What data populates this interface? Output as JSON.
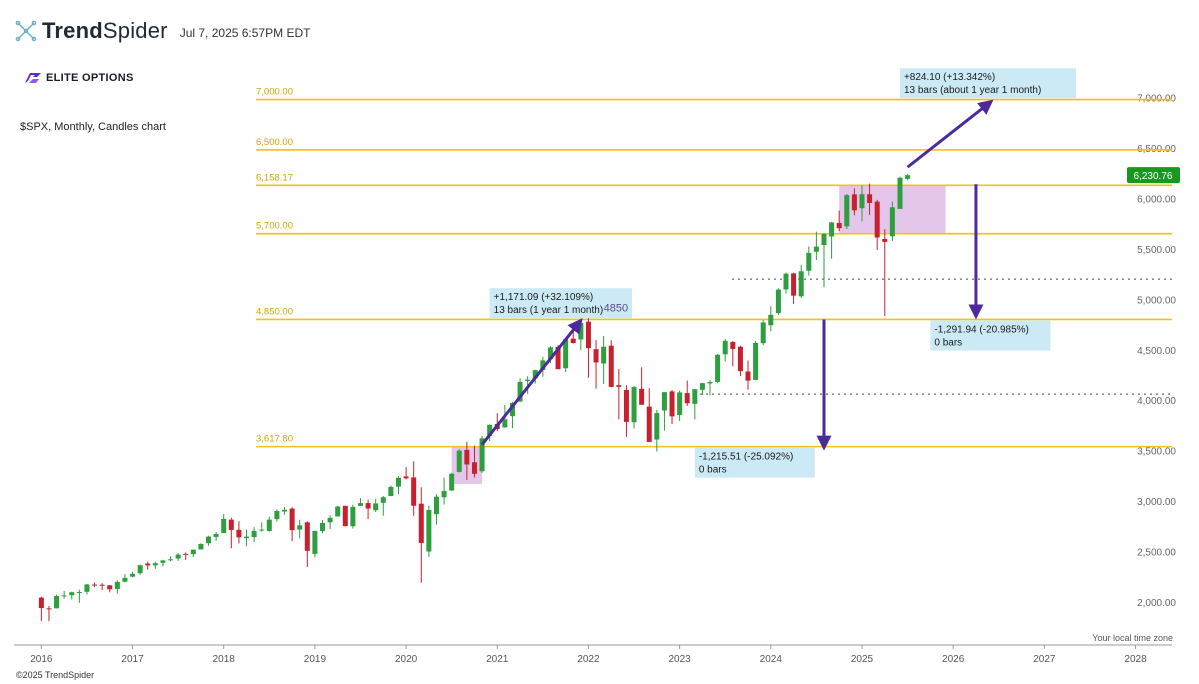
{
  "header": {
    "brand_light": "Trend",
    "brand_heavy": "Spider",
    "timestamp": "Jul 7, 2025 6:57PM EDT"
  },
  "watermark": {
    "label": "ELITE OPTIONS",
    "color": "#5b2bd1"
  },
  "symbol_label": "$SPX, Monthly, Candles chart",
  "timezone_label": "Your local time zone",
  "copyright": "©2025 TrendSpider",
  "colors": {
    "up": "#2e9e3f",
    "down": "#c8202e",
    "level": "#f2c118",
    "arrow": "#4b2a9c",
    "zone": "#d9b3e3",
    "box": "#c9e9f5",
    "price_tag": "#18981e"
  },
  "chart_data": {
    "type": "candlestick",
    "ylim": [
      1700,
      7300
    ],
    "y_ticks": [
      "2,000.00",
      "2,500.00",
      "3,000.00",
      "3,500.00",
      "4,000.00",
      "4,500.00",
      "5,000.00",
      "5,500.00",
      "6,000.00",
      "6,500.00",
      "7,000.00"
    ],
    "y_tick_values": [
      2000,
      2500,
      3000,
      3500,
      4000,
      4500,
      5000,
      5500,
      6000,
      6500,
      7000
    ],
    "x_labels": [
      "2016",
      "2017",
      "2018",
      "2019",
      "2020",
      "2021",
      "2022",
      "2023",
      "2024",
      "2025",
      "2026",
      "2027",
      "2028"
    ],
    "x_label_years": [
      2016,
      2017,
      2018,
      2019,
      2020,
      2021,
      2022,
      2023,
      2024,
      2025,
      2026,
      2027,
      2028
    ],
    "candles_start": "2016-01",
    "candles": [
      [
        2044,
        2052,
        1812,
        1940
      ],
      [
        1937,
        1962,
        1810,
        1932
      ],
      [
        1937,
        2073,
        1937,
        2060
      ],
      [
        2057,
        2111,
        2034,
        2065
      ],
      [
        2067,
        2103,
        2025,
        2097
      ],
      [
        2094,
        2121,
        1992,
        2099
      ],
      [
        2101,
        2178,
        2074,
        2174
      ],
      [
        2173,
        2193,
        2147,
        2171
      ],
      [
        2171,
        2187,
        2119,
        2168
      ],
      [
        2165,
        2169,
        2097,
        2126
      ],
      [
        2129,
        2214,
        2083,
        2199
      ],
      [
        2201,
        2278,
        2194,
        2239
      ],
      [
        2251,
        2301,
        2245,
        2279
      ],
      [
        2285,
        2371,
        2271,
        2364
      ],
      [
        2381,
        2401,
        2322,
        2363
      ],
      [
        2363,
        2398,
        2329,
        2384
      ],
      [
        2388,
        2418,
        2352,
        2412
      ],
      [
        2415,
        2454,
        2405,
        2423
      ],
      [
        2431,
        2484,
        2407,
        2470
      ],
      [
        2477,
        2491,
        2417,
        2472
      ],
      [
        2474,
        2519,
        2446,
        2519
      ],
      [
        2521,
        2582,
        2520,
        2575
      ],
      [
        2583,
        2657,
        2557,
        2648
      ],
      [
        2645,
        2694,
        2605,
        2674
      ],
      [
        2683,
        2873,
        2683,
        2824
      ],
      [
        2816,
        2835,
        2533,
        2714
      ],
      [
        2715,
        2801,
        2580,
        2641
      ],
      [
        2633,
        2717,
        2554,
        2648
      ],
      [
        2643,
        2742,
        2595,
        2705
      ],
      [
        2718,
        2791,
        2698,
        2718
      ],
      [
        2704,
        2848,
        2698,
        2816
      ],
      [
        2821,
        2917,
        2796,
        2902
      ],
      [
        2897,
        2940,
        2864,
        2914
      ],
      [
        2926,
        2940,
        2603,
        2712
      ],
      [
        2718,
        2815,
        2631,
        2760
      ],
      [
        2790,
        2800,
        2346,
        2507
      ],
      [
        2477,
        2708,
        2443,
        2704
      ],
      [
        2703,
        2813,
        2681,
        2784
      ],
      [
        2790,
        2860,
        2722,
        2834
      ],
      [
        2848,
        2955,
        2848,
        2946
      ],
      [
        2953,
        2954,
        2751,
        2752
      ],
      [
        2751,
        2965,
        2728,
        2942
      ],
      [
        2953,
        3028,
        2952,
        2980
      ],
      [
        2980,
        3014,
        2822,
        2926
      ],
      [
        2910,
        3022,
        2892,
        2977
      ],
      [
        2983,
        3050,
        2855,
        3038
      ],
      [
        3050,
        3155,
        3050,
        3141
      ],
      [
        3143,
        3248,
        3070,
        3231
      ],
      [
        3245,
        3337,
        3214,
        3226
      ],
      [
        3235,
        3394,
        2855,
        2954
      ],
      [
        2974,
        3137,
        2192,
        2585
      ],
      [
        2500,
        2955,
        2447,
        2912
      ],
      [
        2870,
        3068,
        2766,
        3044
      ],
      [
        3038,
        3233,
        2966,
        3100
      ],
      [
        3105,
        3280,
        3101,
        3271
      ],
      [
        3289,
        3515,
        3284,
        3500
      ],
      [
        3507,
        3588,
        3210,
        3363
      ],
      [
        3385,
        3550,
        3234,
        3270
      ],
      [
        3296,
        3646,
        3280,
        3622
      ],
      [
        3645,
        3760,
        3595,
        3756
      ],
      [
        3764,
        3871,
        3695,
        3714
      ],
      [
        3731,
        3951,
        3726,
        3811
      ],
      [
        3842,
        3983,
        3723,
        3973
      ],
      [
        3987,
        4218,
        3980,
        4181
      ],
      [
        4191,
        4238,
        4062,
        4204
      ],
      [
        4216,
        4302,
        4165,
        4298
      ],
      [
        4300,
        4429,
        4233,
        4395
      ],
      [
        4407,
        4537,
        4367,
        4523
      ],
      [
        4528,
        4546,
        4306,
        4308
      ],
      [
        4317,
        4608,
        4279,
        4605
      ],
      [
        4610,
        4744,
        4561,
        4567
      ],
      [
        4602,
        4808,
        4495,
        4766
      ],
      [
        4778,
        4819,
        4222,
        4516
      ],
      [
        4506,
        4596,
        4115,
        4374
      ],
      [
        4363,
        4637,
        4161,
        4530
      ],
      [
        4540,
        4594,
        4129,
        4132
      ],
      [
        4149,
        4308,
        3811,
        4132
      ],
      [
        4102,
        4148,
        3637,
        3785
      ],
      [
        3781,
        4141,
        3721,
        4130
      ],
      [
        4113,
        4326,
        3955,
        3955
      ],
      [
        3937,
        4120,
        3584,
        3586
      ],
      [
        3610,
        3905,
        3491,
        3872
      ],
      [
        3898,
        4080,
        3698,
        4080
      ],
      [
        4087,
        4101,
        3764,
        3840
      ],
      [
        3853,
        4095,
        3794,
        4077
      ],
      [
        4070,
        4195,
        3943,
        3970
      ],
      [
        3964,
        4110,
        3809,
        4109
      ],
      [
        4103,
        4170,
        4049,
        4169
      ],
      [
        4166,
        4198,
        4048,
        4180
      ],
      [
        4181,
        4458,
        4167,
        4450
      ],
      [
        4455,
        4607,
        4385,
        4589
      ],
      [
        4578,
        4584,
        4336,
        4508
      ],
      [
        4530,
        4541,
        4238,
        4288
      ],
      [
        4284,
        4393,
        4104,
        4194
      ],
      [
        4201,
        4587,
        4197,
        4568
      ],
      [
        4565,
        4794,
        4546,
        4770
      ],
      [
        4743,
        4931,
        4683,
        4846
      ],
      [
        4862,
        5111,
        4845,
        5096
      ],
      [
        5098,
        5265,
        5057,
        5254
      ],
      [
        5257,
        5264,
        4954,
        5036
      ],
      [
        5030,
        5342,
        5012,
        5278
      ],
      [
        5283,
        5524,
        5235,
        5460
      ],
      [
        5471,
        5670,
        5390,
        5522
      ],
      [
        5537,
        5651,
        5120,
        5648
      ],
      [
        5623,
        5767,
        5402,
        5762
      ],
      [
        5757,
        5879,
        5675,
        5705
      ],
      [
        5723,
        6044,
        5696,
        6032
      ],
      [
        6040,
        6100,
        5833,
        5882
      ],
      [
        5903,
        6128,
        5773,
        6041
      ],
      [
        6041,
        6147,
        5837,
        5955
      ],
      [
        5968,
        5986,
        5489,
        5612
      ],
      [
        5598,
        5695,
        4835,
        5569
      ],
      [
        5625,
        5969,
        5578,
        5912
      ],
      [
        5896,
        6216,
        5896,
        6205
      ],
      [
        6194,
        6240,
        6179,
        6230
      ]
    ],
    "last_price_label": "6,230.76",
    "last_price": 6230.76,
    "levels": [
      {
        "label": "7,000.00",
        "value": 6980
      },
      {
        "label": "6,500.00",
        "value": 6480
      },
      {
        "label": "6,158.17",
        "value": 6130
      },
      {
        "label": "5,700.00",
        "value": 5650
      },
      {
        "label": "4,850.00",
        "value": 4800
      },
      {
        "label": "3,617.80",
        "value": 3540
      }
    ],
    "dotted_levels": [
      5200,
      4060
    ],
    "zones": [
      {
        "from": "2020-07",
        "to": "2020-11",
        "low": 3170,
        "high": 3540
      },
      {
        "from": "2024-10",
        "to": "2025-12",
        "low": 5650,
        "high": 6130
      }
    ],
    "arrows": [
      {
        "from": [
          "2020-11",
          3560
        ],
        "to": [
          "2021-12",
          4790
        ]
      },
      {
        "from": [
          "2025-07",
          6310
        ],
        "to": [
          "2026-06",
          6960
        ]
      },
      {
        "from": [
          "2026-04",
          6140
        ],
        "to": [
          "2026-04",
          4830
        ]
      },
      {
        "from": [
          "2024-08",
          4800
        ],
        "to": [
          "2024-08",
          3530
        ]
      }
    ],
    "boxes": [
      {
        "line1": "+1,171.09 (+32.109%)",
        "line2": "13 bars (1 year 1 month)",
        "anchor": [
          "2020-12",
          5110
        ]
      },
      {
        "line1": "+824.10 (+13.342%)",
        "line2": "13 bars (about 1 year 1 month)",
        "anchor": [
          "2025-06",
          7290
        ]
      },
      {
        "line1": "-1,291.94 (-20.985%)",
        "line2": "0 bars",
        "anchor": [
          "2025-10",
          4790
        ]
      },
      {
        "line1": "-1,215.51 (-25.092%)",
        "line2": "0 bars",
        "anchor": [
          "2023-03",
          3530
        ]
      }
    ],
    "annotation": {
      "text": "4850",
      "at": [
        "2022-03",
        4820
      ]
    }
  }
}
